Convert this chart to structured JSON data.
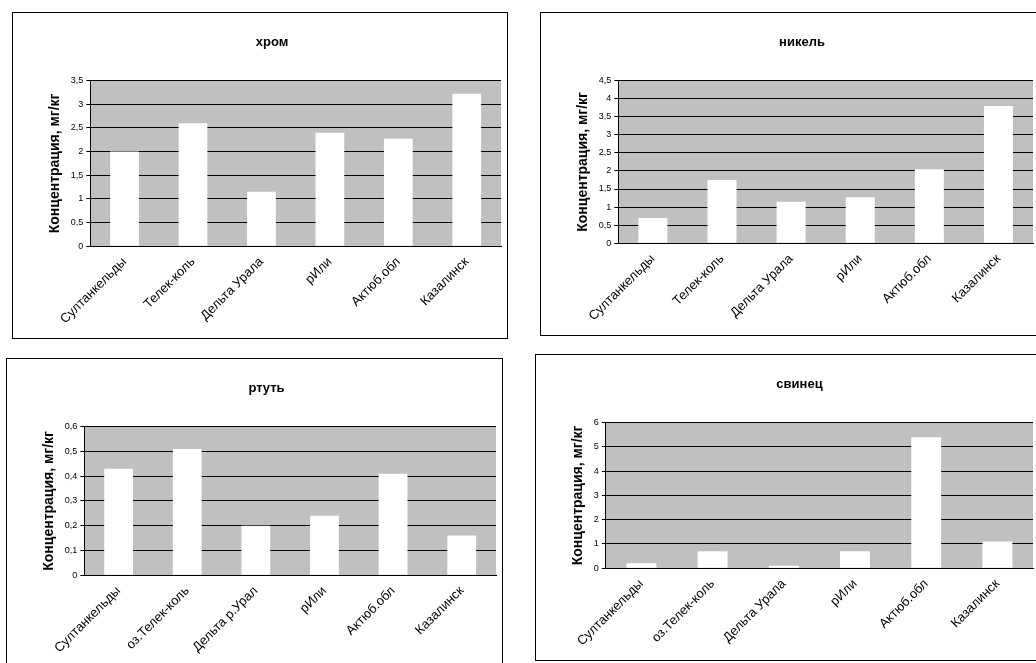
{
  "chart_data": [
    {
      "type": "bar",
      "title": "хром",
      "ylabel": "Концентрация, мг/кг",
      "categories": [
        "Султанкельды",
        "Телек-коль",
        "Дельта Урала",
        "рИли",
        "Актюб.обл",
        "Казалинск"
      ],
      "values": [
        2.0,
        2.6,
        1.15,
        2.4,
        2.27,
        3.22
      ],
      "color": "#ffffff",
      "ylim": [
        0,
        3.5
      ],
      "yticks": [
        0,
        {
          "value": 0.5,
          "label": "0,5"
        },
        1,
        {
          "value": 1.5,
          "label": "1,5"
        },
        2,
        {
          "value": 2.5,
          "label": "2,5"
        },
        3,
        {
          "value": 3.5,
          "label": "3,5"
        }
      ],
      "grid": "y"
    },
    {
      "type": "bar",
      "title": "никель",
      "ylabel": "Концентрация, мг/кг",
      "categories": [
        "Султанкельды",
        "Телек-коль",
        "Дельта Урала",
        "рИли",
        "Актюб.обл",
        "Казалинск"
      ],
      "values": [
        0.7,
        1.75,
        1.15,
        1.27,
        2.05,
        3.8
      ],
      "color": "#ffffff",
      "ylim": [
        0,
        4.5
      ],
      "yticks": [
        0,
        {
          "value": 0.5,
          "label": "0,5"
        },
        1,
        {
          "value": 1.5,
          "label": "1,5"
        },
        2,
        {
          "value": 2.5,
          "label": "2,5"
        },
        3,
        {
          "value": 3.5,
          "label": "3,5"
        },
        4,
        {
          "value": 4.5,
          "label": "4,5"
        }
      ],
      "grid": "y"
    },
    {
      "type": "bar",
      "title": "ртуть",
      "ylabel": "Концентрация, мг/кг",
      "categories": [
        "Султанкельды",
        "оз.Телек-коль",
        "Дельта р.Урал",
        "рИли",
        "Актюб.обл",
        "Казалинск"
      ],
      "values": [
        0.43,
        0.51,
        0.2,
        0.24,
        0.41,
        0.16
      ],
      "color": "#ffffff",
      "ylim": [
        0,
        0.6
      ],
      "yticks": [
        0,
        {
          "value": 0.1,
          "label": "0,1"
        },
        {
          "value": 0.2,
          "label": "0,2"
        },
        {
          "value": 0.3,
          "label": "0,3"
        },
        {
          "value": 0.4,
          "label": "0,4"
        },
        {
          "value": 0.5,
          "label": "0,5"
        },
        {
          "value": 0.6,
          "label": "0,6"
        }
      ],
      "grid": "y"
    },
    {
      "type": "bar",
      "title": "свинец",
      "ylabel": "Концентрация, мг/кг",
      "categories": [
        "Султанкельды",
        "оз.Телек-коль",
        "Дельта Урала",
        "рИли",
        "Актюб.обл",
        "Казалинск"
      ],
      "values": [
        0.2,
        0.7,
        0.1,
        0.7,
        5.4,
        1.1
      ],
      "color": "#ffffff",
      "ylim": [
        0,
        6
      ],
      "yticks": [
        0,
        1,
        2,
        3,
        4,
        5,
        6
      ],
      "grid": "y"
    }
  ]
}
